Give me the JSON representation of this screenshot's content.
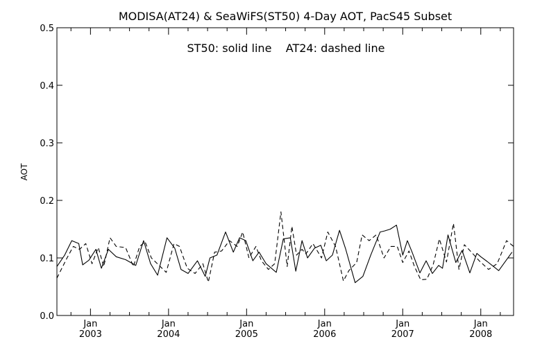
{
  "chart_data": {
    "type": "line",
    "title": "MODISA(AT24) & SeaWiFS(ST50) 4-Day AOT, PacS45 Subset",
    "annotation": "ST50: solid line    AT24: dashed line",
    "ylabel": "AOT",
    "xlabel": "",
    "ylim": [
      0.0,
      0.5
    ],
    "xlim": [
      2002.57,
      2008.42
    ],
    "y_ticks": [
      "0.0",
      "0.1",
      "0.2",
      "0.3",
      "0.4",
      "0.5"
    ],
    "x_ticks": [
      {
        "month": "Jan",
        "year": "2003",
        "x": 2003.0
      },
      {
        "month": "Jan",
        "year": "2004",
        "x": 2004.0
      },
      {
        "month": "Jan",
        "year": "2005",
        "x": 2005.0
      },
      {
        "month": "Jan",
        "year": "2006",
        "x": 2006.0
      },
      {
        "month": "Jan",
        "year": "2007",
        "x": 2007.0
      },
      {
        "month": "Jan",
        "year": "2008",
        "x": 2008.0
      }
    ],
    "grid": false,
    "legend": "none",
    "series": [
      {
        "name": "ST50",
        "style": "solid",
        "x": [
          2002.57,
          2002.67,
          2002.76,
          2002.85,
          2002.9,
          2002.98,
          2003.07,
          2003.14,
          2003.23,
          2003.33,
          2003.45,
          2003.58,
          2003.68,
          2003.77,
          2003.86,
          2003.98,
          2004.08,
          2004.16,
          2004.25,
          2004.37,
          2004.47,
          2004.53,
          2004.62,
          2004.73,
          2004.83,
          2004.91,
          2004.99,
          2005.08,
          2005.16,
          2005.25,
          2005.38,
          2005.47,
          2005.56,
          2005.63,
          2005.71,
          2005.78,
          2005.87,
          2005.95,
          2006.02,
          2006.1,
          2006.19,
          2006.27,
          2006.39,
          2006.49,
          2006.59,
          2006.71,
          2006.77,
          2006.84,
          2006.92,
          2007.0,
          2007.06,
          2007.12,
          2007.22,
          2007.3,
          2007.38,
          2007.46,
          2007.51,
          2007.58,
          2007.68,
          2007.76,
          2007.86,
          2007.95,
          2008.0,
          2008.08,
          2008.23,
          2008.4
        ],
        "values": [
          0.085,
          0.105,
          0.13,
          0.125,
          0.088,
          0.096,
          0.115,
          0.082,
          0.115,
          0.102,
          0.097,
          0.087,
          0.13,
          0.09,
          0.07,
          0.135,
          0.117,
          0.08,
          0.073,
          0.095,
          0.068,
          0.1,
          0.105,
          0.145,
          0.11,
          0.135,
          0.13,
          0.095,
          0.11,
          0.09,
          0.075,
          0.133,
          0.135,
          0.077,
          0.13,
          0.1,
          0.117,
          0.122,
          0.095,
          0.105,
          0.148,
          0.115,
          0.057,
          0.068,
          0.105,
          0.145,
          0.147,
          0.15,
          0.157,
          0.105,
          0.13,
          0.11,
          0.074,
          0.095,
          0.073,
          0.087,
          0.082,
          0.14,
          0.092,
          0.113,
          0.074,
          0.108,
          0.102,
          0.094,
          0.078,
          0.11
        ]
      },
      {
        "name": "AT24",
        "style": "dashed",
        "x": [
          2002.57,
          2002.7,
          2002.78,
          2002.86,
          2002.94,
          2003.02,
          2003.1,
          2003.17,
          2003.25,
          2003.33,
          2003.45,
          2003.55,
          2003.63,
          2003.7,
          2003.78,
          2003.88,
          2003.97,
          2004.07,
          2004.14,
          2004.24,
          2004.34,
          2004.44,
          2004.51,
          2004.59,
          2004.68,
          2004.78,
          2004.88,
          2004.95,
          2005.03,
          2005.12,
          2005.19,
          2005.28,
          2005.36,
          2005.44,
          2005.52,
          2005.58,
          2005.64,
          2005.71,
          2005.76,
          2005.85,
          2005.96,
          2006.04,
          2006.14,
          2006.24,
          2006.31,
          2006.41,
          2006.48,
          2006.57,
          2006.66,
          2006.76,
          2006.85,
          2006.93,
          2007.0,
          2007.08,
          2007.15,
          2007.23,
          2007.31,
          2007.39,
          2007.47,
          2007.56,
          2007.65,
          2007.72,
          2007.79,
          2007.88,
          2007.98,
          2008.1,
          2008.21,
          2008.33,
          2008.42
        ],
        "values": [
          0.065,
          0.1,
          0.12,
          0.115,
          0.125,
          0.09,
          0.118,
          0.085,
          0.135,
          0.12,
          0.118,
          0.085,
          0.12,
          0.128,
          0.1,
          0.087,
          0.075,
          0.125,
          0.12,
          0.082,
          0.073,
          0.09,
          0.058,
          0.11,
          0.112,
          0.13,
          0.12,
          0.145,
          0.1,
          0.12,
          0.095,
          0.08,
          0.09,
          0.18,
          0.085,
          0.155,
          0.105,
          0.115,
          0.107,
          0.125,
          0.1,
          0.145,
          0.12,
          0.06,
          0.078,
          0.092,
          0.14,
          0.13,
          0.14,
          0.1,
          0.12,
          0.12,
          0.092,
          0.112,
          0.085,
          0.062,
          0.063,
          0.088,
          0.133,
          0.093,
          0.16,
          0.08,
          0.123,
          0.11,
          0.095,
          0.08,
          0.09,
          0.13,
          0.12
        ]
      }
    ]
  }
}
